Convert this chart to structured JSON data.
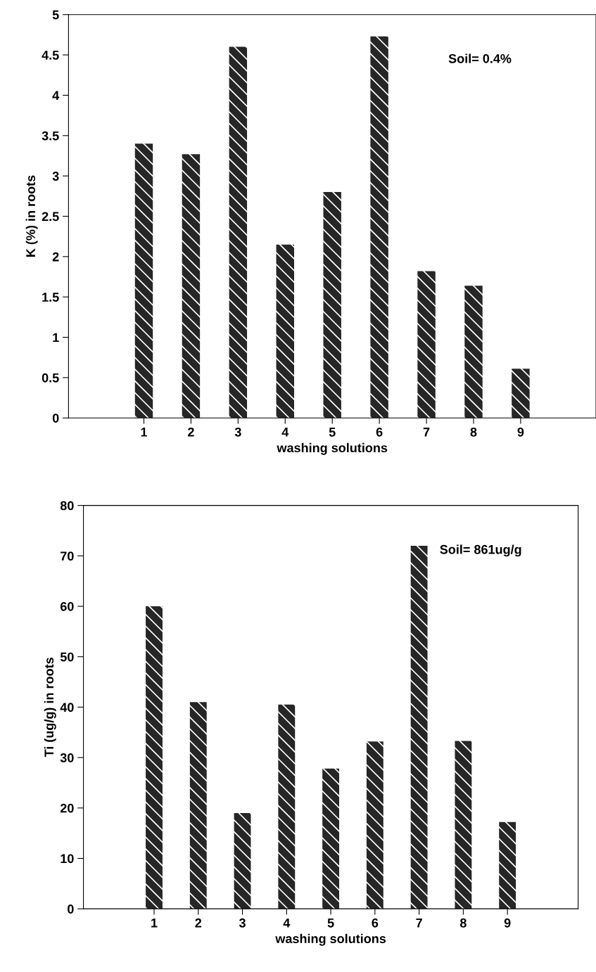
{
  "chart_data": [
    {
      "type": "bar",
      "categories": [
        "1",
        "2",
        "3",
        "4",
        "5",
        "6",
        "7",
        "8",
        "9"
      ],
      "xlabel": "washing solutions",
      "ylabel": "K (%) in roots",
      "values": [
        3.4,
        3.27,
        4.6,
        2.15,
        2.8,
        4.73,
        1.82,
        1.64,
        0.61
      ],
      "color": "#262626",
      "ylim": [
        0,
        5
      ],
      "yticks": [
        0,
        0.5,
        1,
        1.5,
        2,
        2.5,
        3,
        3.5,
        4,
        4.5,
        5
      ],
      "grid": false,
      "annotations": [
        "Soil= 0.4%"
      ]
    },
    {
      "type": "bar",
      "categories": [
        "1",
        "2",
        "3",
        "4",
        "5",
        "6",
        "7",
        "8",
        "9"
      ],
      "xlabel": "washing solutions",
      "ylabel": "Ti (ug/g) in roots",
      "values": [
        60,
        41,
        19,
        40.5,
        27.8,
        33.2,
        72,
        33.3,
        17.2
      ],
      "color": "#262626",
      "ylim": [
        0,
        80
      ],
      "yticks": [
        0,
        10,
        20,
        30,
        40,
        50,
        60,
        70,
        80
      ],
      "grid": false,
      "annotations": [
        "Soil= 861ug/g"
      ]
    }
  ]
}
